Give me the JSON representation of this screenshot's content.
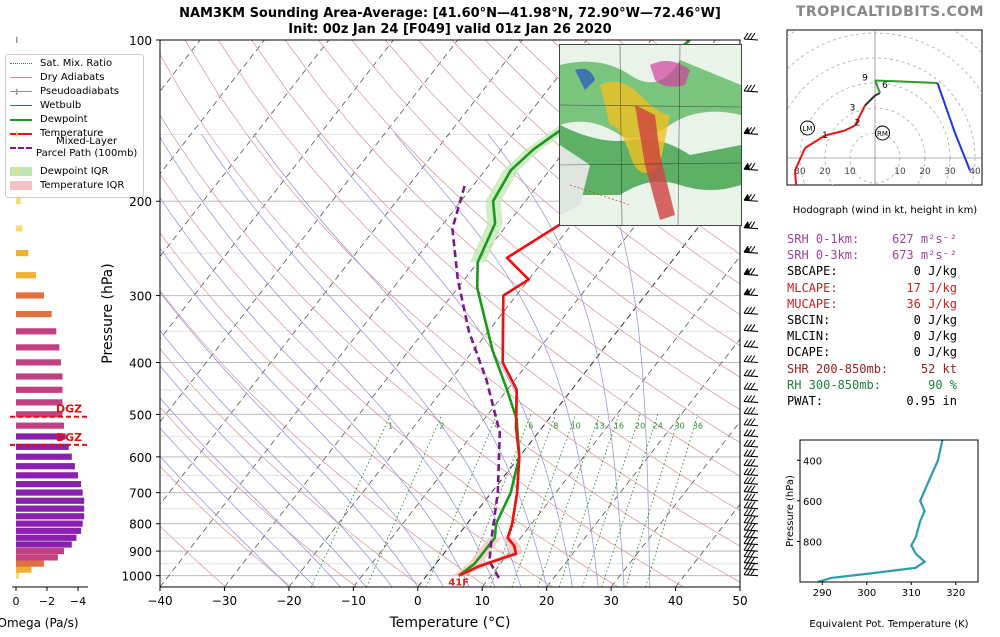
{
  "header": {
    "title_line1": "NAM3KM Sounding Area-Average: [41.60°N—41.98°N, 72.90°W—72.46°W]",
    "title_line2": "Init: 00z Jan 24 [F049] valid 01z Jan 26 2020",
    "brand": "TROPICALTIDBITS.COM"
  },
  "legend": {
    "items": [
      {
        "label": "Sat. Mix. Ratio",
        "color": "#2e8b2e",
        "style": "dotted"
      },
      {
        "label": "Dry Adiabats",
        "color": "#d08a8a",
        "style": "solid"
      },
      {
        "label": "Pseudoadiabats",
        "color": "#8a8ad0",
        "style": "solid"
      },
      {
        "label": "Wetbulb",
        "color": "#3355ee",
        "style": "solid"
      },
      {
        "label": "Dewpoint",
        "color": "#1a9a1a",
        "style": "solid"
      },
      {
        "label": "Temperature",
        "color": "#ee1111",
        "style": "solid"
      },
      {
        "label": "Mixed-Layer\nParcel Path (100mb)",
        "color": "#7a1a8a",
        "style": "dashed"
      },
      {
        "label": "Dewpoint IQR",
        "color": "#bfe6b3",
        "style": "patch"
      },
      {
        "label": "Temperature IQR",
        "color": "#f5c2c2",
        "style": "patch"
      }
    ]
  },
  "stats": [
    {
      "label": "SRH 0-1km:",
      "value": "627 m²s⁻²",
      "color": "#a040a0"
    },
    {
      "label": "SRH 0-3km:",
      "value": "673 m²s⁻²",
      "color": "#a040a0"
    },
    {
      "label": "SBCAPE:",
      "value": "0 J/kg",
      "color": "#000000"
    },
    {
      "label": "MLCAPE:",
      "value": "17 J/kg",
      "color": "#d02020"
    },
    {
      "label": "MUCAPE:",
      "value": "36 J/kg",
      "color": "#d02020"
    },
    {
      "label": "SBCIN:",
      "value": "0 J/kg",
      "color": "#000000"
    },
    {
      "label": "MLCIN:",
      "value": "0 J/kg",
      "color": "#000000"
    },
    {
      "label": "DCAPE:",
      "value": "0 J/kg",
      "color": "#000000"
    },
    {
      "label": "SHR 200-850mb:",
      "value": "52 kt",
      "color": "#a02020"
    },
    {
      "label": "RH 300-850mb:",
      "value": "90 %",
      "color": "#208040"
    },
    {
      "label": "PWAT:",
      "value": "0.95 in",
      "color": "#000000"
    }
  ],
  "chart_data": [
    {
      "type": "line",
      "name": "skewt",
      "xlabel": "Temperature (°C)",
      "ylabel": "Pressure (hPa)",
      "xlim": [
        -40,
        50
      ],
      "ylim": [
        1050,
        100
      ],
      "x_ticks": [
        -40,
        -30,
        -20,
        -10,
        0,
        10,
        20,
        30,
        40,
        50
      ],
      "y_ticks": [
        100,
        200,
        300,
        400,
        500,
        600,
        700,
        800,
        900,
        1000
      ],
      "mixing_ratio_labels": [
        "1",
        "2",
        "4",
        "6",
        "8",
        "10",
        "13",
        "16",
        "20",
        "24",
        "30",
        "36"
      ],
      "surface_temp_label": "41F",
      "series": [
        {
          "name": "Temperature",
          "color": "#ee1111",
          "points": [
            [
              5.0,
              1000
            ],
            [
              7.0,
              960
            ],
            [
              11.2,
              910
            ],
            [
              10.0,
              880
            ],
            [
              8.0,
              850
            ],
            [
              7.0,
              800
            ],
            [
              4.0,
              700
            ],
            [
              0.0,
              600
            ],
            [
              -4.0,
              530
            ],
            [
              -8.5,
              450
            ],
            [
              -14.0,
              400
            ],
            [
              -22.0,
              300
            ],
            [
              -20.0,
              280
            ],
            [
              -26.0,
              255
            ],
            [
              -21.0,
              215
            ],
            [
              -14.0,
              200
            ],
            [
              -10.0,
              170
            ],
            [
              -4.0,
              140
            ],
            [
              1.5,
              115
            ],
            [
              4.5,
              100
            ]
          ]
        },
        {
          "name": "Dewpoint",
          "color": "#1a9a1a",
          "points": [
            [
              5.0,
              1000
            ],
            [
              6.0,
              950
            ],
            [
              6.0,
              850
            ],
            [
              4.5,
              800
            ],
            [
              3.0,
              700
            ],
            [
              0.0,
              600
            ],
            [
              -5.0,
              510
            ],
            [
              -10.0,
              450
            ],
            [
              -17.0,
              380
            ],
            [
              -27.0,
              290
            ],
            [
              -30.0,
              260
            ],
            [
              -32.0,
              220
            ],
            [
              -35.0,
              200
            ],
            [
              -36.0,
              175
            ],
            [
              -35.0,
              160
            ],
            [
              -32.0,
              140
            ],
            [
              -26.5,
              120
            ],
            [
              -24.0,
              100
            ]
          ]
        },
        {
          "name": "Wetbulb",
          "color": "#3355ee",
          "points": [
            [
              -14.0,
              200
            ],
            [
              -10.0,
              170
            ],
            [
              -4.0,
              140
            ],
            [
              1.2,
              115
            ],
            [
              4.0,
              100
            ]
          ]
        },
        {
          "name": "Mixed-Layer Parcel Path (100mb)",
          "color": "#7a1a8a",
          "points": [
            [
              11.5,
              1010
            ],
            [
              8.0,
              940
            ],
            [
              5.5,
              850
            ],
            [
              1.0,
              700
            ],
            [
              -6.0,
              540
            ],
            [
              -14.5,
              430
            ],
            [
              -23.0,
              350
            ],
            [
              -31.0,
              280
            ],
            [
              -38.0,
              225
            ],
            [
              -41.5,
              185
            ]
          ]
        }
      ],
      "dgz_labels": [
        "DGZ",
        "DGZ"
      ],
      "wind_barbs_levels_hpa": [
        1000,
        975,
        950,
        925,
        900,
        875,
        850,
        825,
        800,
        775,
        750,
        725,
        700,
        675,
        650,
        625,
        600,
        575,
        550,
        525,
        500,
        475,
        450,
        425,
        400,
        375,
        350,
        325,
        300,
        275,
        250,
        225,
        200,
        175,
        150,
        125,
        100
      ]
    },
    {
      "type": "bar",
      "name": "omega",
      "xlabel": "Omega (Pa/s)",
      "x_ticks": [
        "0",
        "−2",
        "−4"
      ],
      "levels_hpa": [
        1000,
        975,
        950,
        925,
        900,
        875,
        850,
        825,
        800,
        775,
        750,
        725,
        700,
        675,
        650,
        625,
        600,
        575,
        550,
        525,
        500,
        475,
        450,
        425,
        400,
        375,
        350,
        325,
        300,
        275,
        250,
        225,
        200,
        175,
        150,
        125,
        100
      ],
      "values": [
        -0.2,
        -1.0,
        -1.8,
        -2.7,
        -3.1,
        -3.6,
        -3.9,
        -4.2,
        -4.3,
        -4.4,
        -4.4,
        -4.4,
        -4.3,
        -4.2,
        -4.0,
        -3.8,
        -3.6,
        -3.4,
        -3.2,
        -3.1,
        -3.0,
        -3.0,
        -3.0,
        -3.0,
        -2.9,
        -2.8,
        -2.6,
        -2.3,
        -1.8,
        -1.3,
        -0.8,
        -0.4,
        -0.3,
        -0.15,
        -0.1,
        -0.05,
        -0.05
      ]
    },
    {
      "type": "line",
      "name": "hodograph",
      "xlabel": "Hodograph (wind in kt, height in km)",
      "x_ticks": [
        "30",
        "20",
        "10",
        "10",
        "20",
        "30",
        "40"
      ],
      "height_labels": [
        "1",
        "2",
        "3",
        "6",
        "9"
      ],
      "marker_labels": [
        "LM",
        "RM"
      ],
      "points": [
        [
          -19,
          -40
        ],
        [
          -25,
          -30
        ],
        [
          -31,
          -18
        ],
        [
          -32,
          -5
        ],
        [
          -28,
          4
        ],
        [
          -20,
          9
        ],
        [
          -12,
          11
        ],
        [
          -8,
          13
        ],
        [
          -6,
          17
        ],
        [
          -4,
          21
        ],
        [
          0,
          25
        ],
        [
          2,
          26
        ],
        [
          0,
          31
        ],
        [
          25,
          30
        ],
        [
          32,
          10
        ],
        [
          38,
          -5
        ]
      ]
    },
    {
      "type": "line",
      "name": "theta_e",
      "xlabel": "Equivalent Pot. Temperature (K)",
      "ylabel": "Pressure (hPa)",
      "xlim": [
        285,
        325
      ],
      "ylim": [
        1000,
        300
      ],
      "x_ticks": [
        290,
        300,
        310,
        320
      ],
      "y_ticks": [
        400,
        600,
        800
      ],
      "points": [
        [
          289,
          1000
        ],
        [
          292,
          980
        ],
        [
          300,
          960
        ],
        [
          311,
          930
        ],
        [
          313,
          900
        ],
        [
          311,
          860
        ],
        [
          310,
          820
        ],
        [
          311,
          780
        ],
        [
          312,
          700
        ],
        [
          313,
          650
        ],
        [
          312,
          600
        ],
        [
          313,
          550
        ],
        [
          314,
          500
        ],
        [
          315,
          450
        ],
        [
          316,
          400
        ],
        [
          316.5,
          350
        ],
        [
          317,
          300
        ]
      ]
    }
  ]
}
